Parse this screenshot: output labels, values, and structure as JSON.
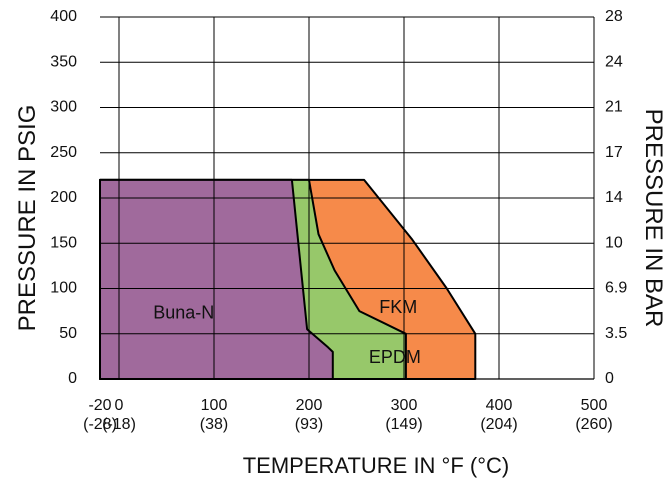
{
  "chart_data": {
    "type": "area",
    "xlabel": "TEMPERATURE IN °F (°C)",
    "ylabel_left": "PRESSURE IN PSIG",
    "ylabel_right": "PRESSURE IN BAR",
    "xlim": [
      -20,
      500
    ],
    "ylim": [
      0,
      400
    ],
    "grid": true,
    "x_ticks": [
      {
        "value": -20,
        "f": "-20",
        "c": "(-28)"
      },
      {
        "value": 0,
        "f": "0",
        "c": "(-18)"
      },
      {
        "value": 100,
        "f": "100",
        "c": "(38)"
      },
      {
        "value": 200,
        "f": "200",
        "c": "(93)"
      },
      {
        "value": 300,
        "f": "300",
        "c": "(149)"
      },
      {
        "value": 400,
        "f": "400",
        "c": "(204)"
      },
      {
        "value": 500,
        "f": "500",
        "c": "(260)"
      }
    ],
    "y_ticks_left": [
      {
        "value": 0,
        "label": "0"
      },
      {
        "value": 50,
        "label": "50"
      },
      {
        "value": 100,
        "label": "100"
      },
      {
        "value": 150,
        "label": "150"
      },
      {
        "value": 200,
        "label": "200"
      },
      {
        "value": 250,
        "label": "250"
      },
      {
        "value": 300,
        "label": "300"
      },
      {
        "value": 350,
        "label": "350"
      },
      {
        "value": 400,
        "label": "400"
      }
    ],
    "y_ticks_right": [
      {
        "value": 0,
        "label": "0"
      },
      {
        "value": 50,
        "label": "3.5"
      },
      {
        "value": 100,
        "label": "6.9"
      },
      {
        "value": 150,
        "label": "10"
      },
      {
        "value": 200,
        "label": "14"
      },
      {
        "value": 250,
        "label": "17"
      },
      {
        "value": 300,
        "label": "21"
      },
      {
        "value": 350,
        "label": "24"
      },
      {
        "value": 400,
        "label": "28"
      }
    ],
    "series": [
      {
        "name": "FKM",
        "color": "#F68A4A",
        "label_at": [
          274,
          78
        ],
        "points": [
          [
            -20,
            0
          ],
          [
            -20,
            220
          ],
          [
            258,
            220
          ],
          [
            308,
            155
          ],
          [
            345,
            100
          ],
          [
            375,
            50
          ],
          [
            375,
            0
          ]
        ]
      },
      {
        "name": "EPDM",
        "color": "#97C86A",
        "label_at": [
          263,
          23
        ],
        "points": [
          [
            -20,
            0
          ],
          [
            -20,
            220
          ],
          [
            200,
            220
          ],
          [
            210,
            160
          ],
          [
            227,
            120
          ],
          [
            253,
            75
          ],
          [
            302,
            50
          ],
          [
            302,
            0
          ]
        ]
      },
      {
        "name": "Buna-N",
        "color": "#A06A9C",
        "label_at": [
          36,
          72
        ],
        "points": [
          [
            -20,
            0
          ],
          [
            -20,
            220
          ],
          [
            182,
            220
          ],
          [
            198,
            55
          ],
          [
            220,
            35
          ],
          [
            225,
            30
          ],
          [
            225,
            0
          ]
        ]
      }
    ]
  }
}
